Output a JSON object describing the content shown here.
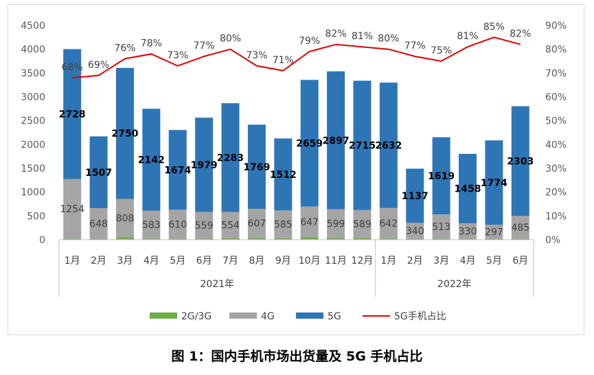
{
  "caption": "图 1：国内手机市场出货量及 5G 手机占比",
  "colors": {
    "c2g3g": "#70ad47",
    "c4g": "#a5a5a5",
    "c5g": "#2e75b6",
    "share": "#e00000",
    "axis": "#bfbfbf",
    "grid": "#d9d9d9"
  },
  "chart_data": {
    "type": "bar",
    "stacked": true,
    "categories": [
      "1月",
      "2月",
      "3月",
      "4月",
      "5月",
      "6月",
      "7月",
      "8月",
      "9月",
      "10月",
      "11月",
      "12月",
      "1月",
      "2月",
      "3月",
      "4月",
      "5月",
      "6月"
    ],
    "groups": [
      {
        "label": "2021年",
        "count": 12
      },
      {
        "label": "2022年",
        "count": 6
      }
    ],
    "series": [
      {
        "name": "2G/3G",
        "values": [
          20,
          15,
          50,
          25,
          20,
          25,
          30,
          40,
          30,
          50,
          40,
          35,
          25,
          15,
          20,
          15,
          15,
          15
        ]
      },
      {
        "name": "4G",
        "values": [
          1254,
          648,
          808,
          583,
          610,
          559,
          554,
          607,
          585,
          647,
          599,
          589,
          642,
          340,
          513,
          330,
          297,
          485
        ]
      },
      {
        "name": "5G",
        "values": [
          2728,
          1507,
          2750,
          2142,
          1674,
          1979,
          2283,
          1769,
          1512,
          2659,
          2897,
          2715,
          2632,
          1137,
          1619,
          1458,
          1774,
          2303
        ]
      }
    ],
    "line_series": {
      "name": "5G手机占比",
      "values": [
        68,
        69,
        76,
        78,
        73,
        77,
        80,
        73,
        71,
        79,
        82,
        81,
        80,
        77,
        75,
        81,
        85,
        82
      ],
      "labels": [
        "68%",
        "69%",
        "76%",
        "78%",
        "73%",
        "77%",
        "80%",
        "73%",
        "71%",
        "79%",
        "82%",
        "81%",
        "80%",
        "77%",
        "75%",
        "81%",
        "85%",
        "82%"
      ]
    },
    "y_left": {
      "min": 0,
      "max": 4500,
      "step": 500,
      "ticks": [
        "0",
        "500",
        "1000",
        "1500",
        "2000",
        "2500",
        "3000",
        "3500",
        "4000",
        "4500"
      ]
    },
    "y_right": {
      "min": 0,
      "max": 90,
      "step": 10,
      "ticks": [
        "0%",
        "10%",
        "20%",
        "30%",
        "40%",
        "50%",
        "60%",
        "70%",
        "80%",
        "90%"
      ]
    },
    "grid": false,
    "legend": {
      "position": "bottom",
      "items": [
        {
          "label": "2G/3G",
          "kind": "bar",
          "color": "#70ad47"
        },
        {
          "label": "4G",
          "kind": "bar",
          "color": "#a5a5a5"
        },
        {
          "label": "5G",
          "kind": "bar",
          "color": "#2e75b6"
        },
        {
          "label": "5G手机占比",
          "kind": "line",
          "color": "#e00000"
        }
      ]
    }
  }
}
